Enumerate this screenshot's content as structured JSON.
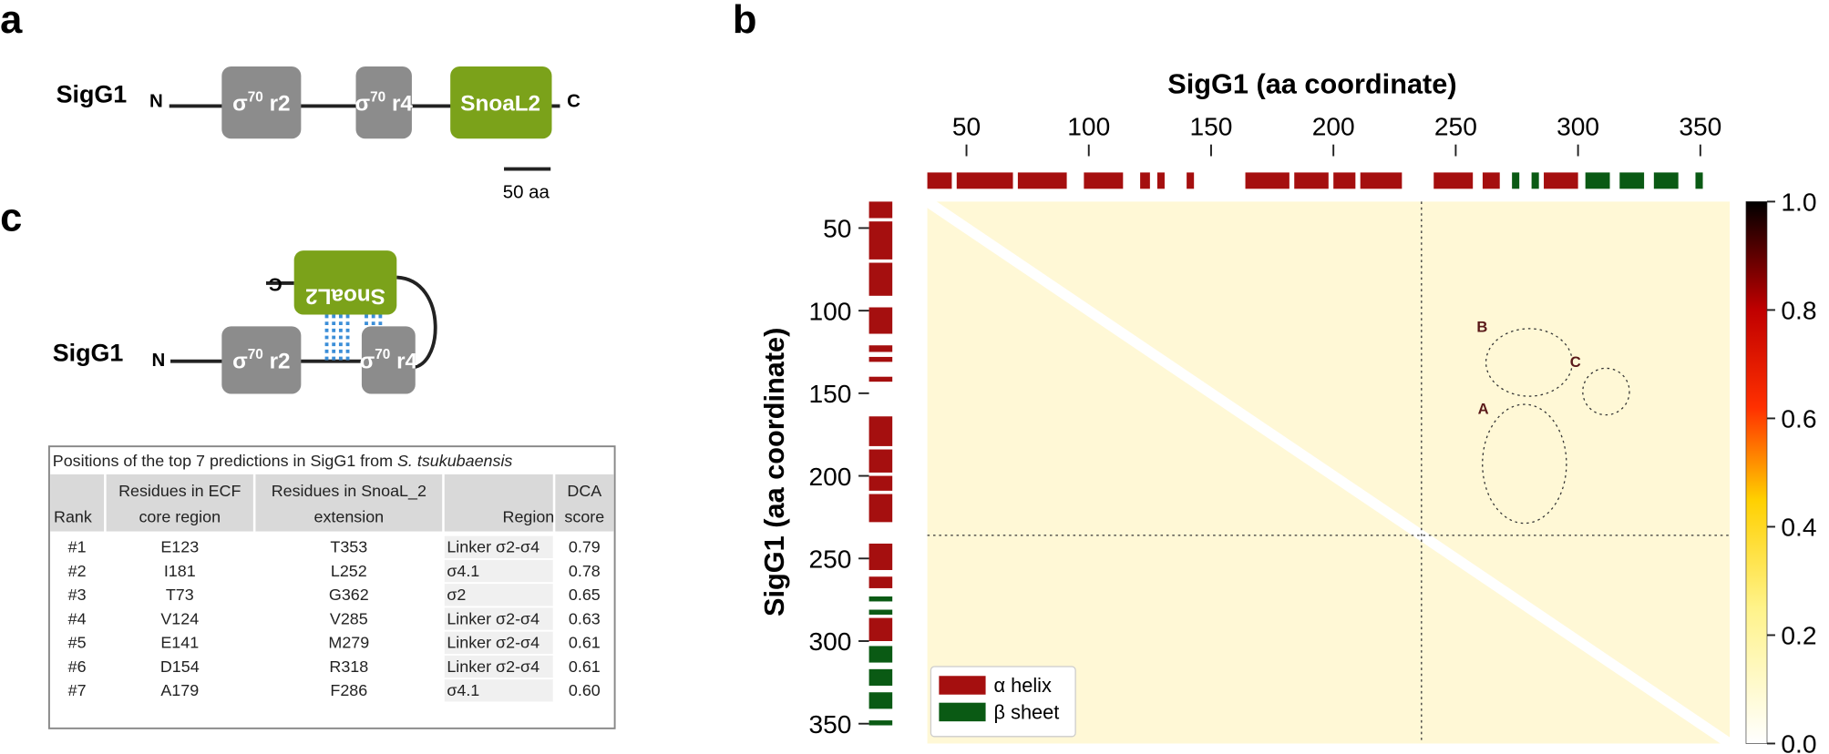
{
  "panel_labels": [
    "a",
    "b",
    "c"
  ],
  "panel_a": {
    "protein": "SigG1",
    "n_term": "N",
    "c_term": "C",
    "domains": [
      {
        "base": "σ",
        "sup": "70",
        "suffix": " r2"
      },
      {
        "base": "σ",
        "sup": "70",
        "suffix": " r4"
      },
      {
        "label": "SnoaL2"
      }
    ],
    "scale_bar": "50 aa"
  },
  "panel_c": {
    "protein": "SigG1",
    "n_term": "N",
    "c_term": "C",
    "domains": [
      {
        "base": "σ",
        "sup": "70",
        "suffix": " r2"
      },
      {
        "base": "σ",
        "sup": "70",
        "suffix": " r4"
      },
      {
        "label": "SnoaL2"
      }
    ],
    "table": {
      "title": "Positions of the top 7 predictions in SigG1 from ",
      "title_italic": "S. tsukubaensis",
      "header": [
        [
          "Rank"
        ],
        [
          "Residues in ECF",
          "core region"
        ],
        [
          "Residues in SnoaL_2",
          "extension"
        ],
        [
          "Region"
        ],
        [
          "DCA",
          "score"
        ]
      ],
      "rows": [
        [
          "#1",
          "E123",
          "T353",
          "Linker σ2-σ4",
          "0.79"
        ],
        [
          "#2",
          "I181",
          "L252",
          "σ4.1",
          "0.78"
        ],
        [
          "#3",
          "T73",
          "G362",
          "σ2",
          "0.65"
        ],
        [
          "#4",
          "V124",
          "V285",
          "Linker σ2-σ4",
          "0.63"
        ],
        [
          "#5",
          "E141",
          "M279",
          "Linker σ2-σ4",
          "0.61"
        ],
        [
          "#6",
          "D154",
          "R318",
          "Linker σ2-σ4",
          "0.61"
        ],
        [
          "#7",
          "A179",
          "F286",
          "σ4.1",
          "0.60"
        ]
      ]
    }
  },
  "chart_data": {
    "type": "heatmap",
    "xlabel": "SigG1 (aa coordinate)",
    "ylabel": "SigG1 (aa coordinate)",
    "xlim": [
      34,
      362
    ],
    "ylim": [
      34,
      362
    ],
    "xticks": [
      50,
      100,
      150,
      200,
      250,
      300,
      350
    ],
    "yticks": [
      50,
      100,
      150,
      200,
      250,
      300,
      350
    ],
    "divider": 236,
    "colorbar": {
      "lim": [
        0,
        1
      ],
      "ticks": [
        {
          "value": 0,
          "label": "0.0"
        },
        {
          "value": 0.2,
          "label": "0.2"
        },
        {
          "value": 0.4,
          "label": "0.4"
        },
        {
          "value": 0.6,
          "label": "0.6"
        },
        {
          "value": 0.8,
          "label": "0.8"
        },
        {
          "value": 1,
          "label": "1.0"
        }
      ]
    },
    "series": [
      {
        "name": "α helix",
        "color": "#a50f0f",
        "segments": [
          [
            34,
            44
          ],
          [
            46,
            69
          ],
          [
            71,
            91
          ],
          [
            98,
            114
          ],
          [
            121,
            125
          ],
          [
            128,
            131
          ],
          [
            140,
            143
          ],
          [
            164,
            182
          ],
          [
            184,
            198
          ],
          [
            200,
            209
          ],
          [
            211,
            228
          ],
          [
            241,
            257
          ],
          [
            261,
            268
          ],
          [
            286,
            300
          ]
        ]
      },
      {
        "name": "β sheet",
        "color": "#0a5a14",
        "segments": [
          [
            273,
            276
          ],
          [
            281,
            284
          ],
          [
            303,
            313
          ],
          [
            317,
            327
          ],
          [
            331,
            341
          ],
          [
            348,
            351
          ]
        ]
      }
    ],
    "annotations": [
      "A",
      "B",
      "C"
    ]
  }
}
